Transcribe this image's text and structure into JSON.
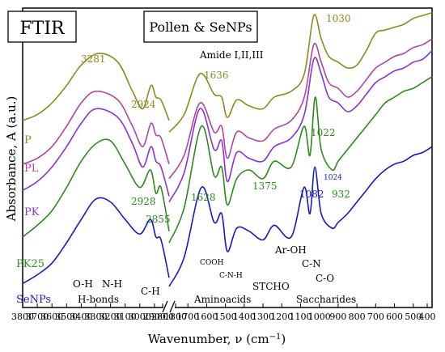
{
  "chart_data": {
    "type": "line",
    "title_box_1": "FTIR",
    "title_box_2": "Pollen & SeNPs",
    "xlabel": "Wavenumber, ν (cm",
    "xlabel_sup": "−1",
    "xlabel_end": ")",
    "ylabel": "Absorbance, A (a.u.)",
    "x_axis_break": [
      2800,
      1800
    ],
    "x_ticks_left": [
      "3800",
      "3700",
      "3600",
      "3500",
      "3400",
      "3300",
      "3200",
      "3100",
      "3000",
      "2900",
      "2800"
    ],
    "x_ticks_right": [
      "1800",
      "1700",
      "1600",
      "1500",
      "1400",
      "1300",
      "1200",
      "1100",
      "1000",
      "900",
      "800",
      "700",
      "600",
      "500",
      "400"
    ],
    "colors": {
      "P": "#8b8b1e",
      "PL": "#b0469e",
      "PK": "#8a32d6",
      "PK25": "#2e8a1e",
      "SeNPs": "#1919c8"
    },
    "series": [
      {
        "name": "P",
        "label_color": "#8b8b1e",
        "left": [
          [
            3800,
            0.62
          ],
          [
            3700,
            0.64
          ],
          [
            3600,
            0.68
          ],
          [
            3500,
            0.74
          ],
          [
            3400,
            0.81
          ],
          [
            3281,
            0.85
          ],
          [
            3150,
            0.82
          ],
          [
            3050,
            0.72
          ],
          [
            2980,
            0.66
          ],
          [
            2924,
            0.74
          ],
          [
            2890,
            0.7
          ],
          [
            2855,
            0.69
          ],
          [
            2800,
            0.62
          ]
        ],
        "right": [
          [
            1800,
            0.58
          ],
          [
            1720,
            0.64
          ],
          [
            1636,
            0.78
          ],
          [
            1560,
            0.71
          ],
          [
            1520,
            0.7
          ],
          [
            1490,
            0.63
          ],
          [
            1440,
            0.69
          ],
          [
            1375,
            0.67
          ],
          [
            1300,
            0.66
          ],
          [
            1240,
            0.7
          ],
          [
            1150,
            0.72
          ],
          [
            1080,
            0.78
          ],
          [
            1030,
            0.98
          ],
          [
            990,
            0.9
          ],
          [
            950,
            0.84
          ],
          [
            900,
            0.82
          ],
          [
            850,
            0.8
          ],
          [
            800,
            0.81
          ],
          [
            750,
            0.86
          ],
          [
            700,
            0.92
          ],
          [
            650,
            0.93
          ],
          [
            600,
            0.94
          ],
          [
            550,
            0.95
          ],
          [
            500,
            0.97
          ],
          [
            450,
            0.98
          ],
          [
            400,
            0.99
          ]
        ]
      },
      {
        "name": "PL",
        "label_color": "#b0469e",
        "left": [
          [
            3800,
            0.47
          ],
          [
            3700,
            0.49
          ],
          [
            3600,
            0.53
          ],
          [
            3500,
            0.6
          ],
          [
            3400,
            0.68
          ],
          [
            3300,
            0.72
          ],
          [
            3150,
            0.69
          ],
          [
            3050,
            0.6
          ],
          [
            2980,
            0.53
          ],
          [
            2924,
            0.61
          ],
          [
            2890,
            0.57
          ],
          [
            2855,
            0.56
          ],
          [
            2800,
            0.47
          ]
        ],
        "right": [
          [
            1800,
            0.42
          ],
          [
            1720,
            0.5
          ],
          [
            1636,
            0.68
          ],
          [
            1560,
            0.58
          ],
          [
            1520,
            0.6
          ],
          [
            1490,
            0.49
          ],
          [
            1440,
            0.58
          ],
          [
            1375,
            0.56
          ],
          [
            1300,
            0.55
          ],
          [
            1240,
            0.59
          ],
          [
            1150,
            0.62
          ],
          [
            1080,
            0.7
          ],
          [
            1030,
            0.88
          ],
          [
            990,
            0.82
          ],
          [
            950,
            0.75
          ],
          [
            900,
            0.73
          ],
          [
            850,
            0.7
          ],
          [
            800,
            0.72
          ],
          [
            750,
            0.76
          ],
          [
            700,
            0.8
          ],
          [
            650,
            0.82
          ],
          [
            600,
            0.84
          ],
          [
            550,
            0.85
          ],
          [
            500,
            0.87
          ],
          [
            450,
            0.88
          ],
          [
            400,
            0.9
          ]
        ]
      },
      {
        "name": "PK",
        "label_color": "#8a32d6",
        "left": [
          [
            3800,
            0.38
          ],
          [
            3700,
            0.41
          ],
          [
            3600,
            0.46
          ],
          [
            3500,
            0.53
          ],
          [
            3400,
            0.61
          ],
          [
            3300,
            0.66
          ],
          [
            3150,
            0.63
          ],
          [
            3050,
            0.54
          ],
          [
            2980,
            0.46
          ],
          [
            2924,
            0.53
          ],
          [
            2890,
            0.48
          ],
          [
            2855,
            0.46
          ],
          [
            2800,
            0.36
          ]
        ],
        "right": [
          [
            1800,
            0.34
          ],
          [
            1720,
            0.44
          ],
          [
            1636,
            0.66
          ],
          [
            1560,
            0.52
          ],
          [
            1520,
            0.55
          ],
          [
            1490,
            0.41
          ],
          [
            1440,
            0.51
          ],
          [
            1375,
            0.49
          ],
          [
            1300,
            0.48
          ],
          [
            1240,
            0.53
          ],
          [
            1150,
            0.56
          ],
          [
            1080,
            0.64
          ],
          [
            1030,
            0.83
          ],
          [
            990,
            0.78
          ],
          [
            950,
            0.7
          ],
          [
            900,
            0.68
          ],
          [
            850,
            0.65
          ],
          [
            800,
            0.67
          ],
          [
            750,
            0.71
          ],
          [
            700,
            0.75
          ],
          [
            650,
            0.77
          ],
          [
            600,
            0.79
          ],
          [
            550,
            0.8
          ],
          [
            500,
            0.82
          ],
          [
            450,
            0.83
          ],
          [
            400,
            0.86
          ]
        ]
      },
      {
        "name": "PK25",
        "label_color": "#2e8a1e",
        "left": [
          [
            3800,
            0.22
          ],
          [
            3700,
            0.26
          ],
          [
            3600,
            0.31
          ],
          [
            3500,
            0.39
          ],
          [
            3400,
            0.48
          ],
          [
            3300,
            0.54
          ],
          [
            3200,
            0.55
          ],
          [
            3100,
            0.47
          ],
          [
            3000,
            0.39
          ],
          [
            2928,
            0.45
          ],
          [
            2890,
            0.37
          ],
          [
            2855,
            0.39
          ],
          [
            2800,
            0.24
          ]
        ],
        "right": [
          [
            1800,
            0.2
          ],
          [
            1720,
            0.32
          ],
          [
            1628,
            0.6
          ],
          [
            1560,
            0.43
          ],
          [
            1520,
            0.46
          ],
          [
            1490,
            0.33
          ],
          [
            1440,
            0.42
          ],
          [
            1375,
            0.45
          ],
          [
            1300,
            0.42
          ],
          [
            1240,
            0.48
          ],
          [
            1150,
            0.46
          ],
          [
            1082,
            0.6
          ],
          [
            1050,
            0.5
          ],
          [
            1022,
            0.7
          ],
          [
            990,
            0.52
          ],
          [
            932,
            0.45
          ],
          [
            900,
            0.48
          ],
          [
            850,
            0.52
          ],
          [
            800,
            0.56
          ],
          [
            750,
            0.6
          ],
          [
            700,
            0.64
          ],
          [
            650,
            0.68
          ],
          [
            600,
            0.7
          ],
          [
            550,
            0.72
          ],
          [
            500,
            0.73
          ],
          [
            450,
            0.75
          ],
          [
            400,
            0.77
          ]
        ]
      },
      {
        "name": "SeNPs",
        "label_color": "#1919c8",
        "left": [
          [
            3800,
            0.06
          ],
          [
            3700,
            0.09
          ],
          [
            3600,
            0.13
          ],
          [
            3500,
            0.2
          ],
          [
            3400,
            0.28
          ],
          [
            3300,
            0.35
          ],
          [
            3200,
            0.34
          ],
          [
            3100,
            0.28
          ],
          [
            3000,
            0.23
          ],
          [
            2928,
            0.28
          ],
          [
            2890,
            0.22
          ],
          [
            2855,
            0.21
          ],
          [
            2800,
            0.08
          ]
        ],
        "right": [
          [
            1800,
            0.05
          ],
          [
            1720,
            0.15
          ],
          [
            1628,
            0.39
          ],
          [
            1560,
            0.27
          ],
          [
            1520,
            0.3
          ],
          [
            1490,
            0.17
          ],
          [
            1440,
            0.25
          ],
          [
            1375,
            0.24
          ],
          [
            1300,
            0.21
          ],
          [
            1240,
            0.26
          ],
          [
            1150,
            0.22
          ],
          [
            1082,
            0.39
          ],
          [
            1050,
            0.3
          ],
          [
            1024,
            0.46
          ],
          [
            990,
            0.3
          ],
          [
            932,
            0.25
          ],
          [
            900,
            0.27
          ],
          [
            850,
            0.3
          ],
          [
            800,
            0.34
          ],
          [
            750,
            0.38
          ],
          [
            700,
            0.42
          ],
          [
            650,
            0.45
          ],
          [
            600,
            0.47
          ],
          [
            550,
            0.48
          ],
          [
            500,
            0.5
          ],
          [
            450,
            0.51
          ],
          [
            400,
            0.53
          ]
        ]
      }
    ],
    "annotations": {
      "peak_3281": "3281",
      "peak_2924": "2924",
      "peak_2928": "2928",
      "peak_2855": "2855",
      "peak_1636": "1636",
      "peak_1030": "1030",
      "peak_1628": "1628",
      "peak_1375": "1375",
      "peak_1022": "1022",
      "peak_1024": "1024",
      "peak_1082": "1082",
      "peak_932": "932",
      "amide": "Amide I,II,III",
      "oh": "O-H",
      "nh": "N-H",
      "hbonds": "H-bonds",
      "ch": "C-H",
      "cooh": "COOH",
      "cnh": "C-N-H",
      "aminoacids": "Aminoacids",
      "stcho": "STCHO",
      "aroh": "Ar-OH",
      "cn": "C-N",
      "co": "C-O",
      "saccharides": "Saccharides"
    }
  }
}
